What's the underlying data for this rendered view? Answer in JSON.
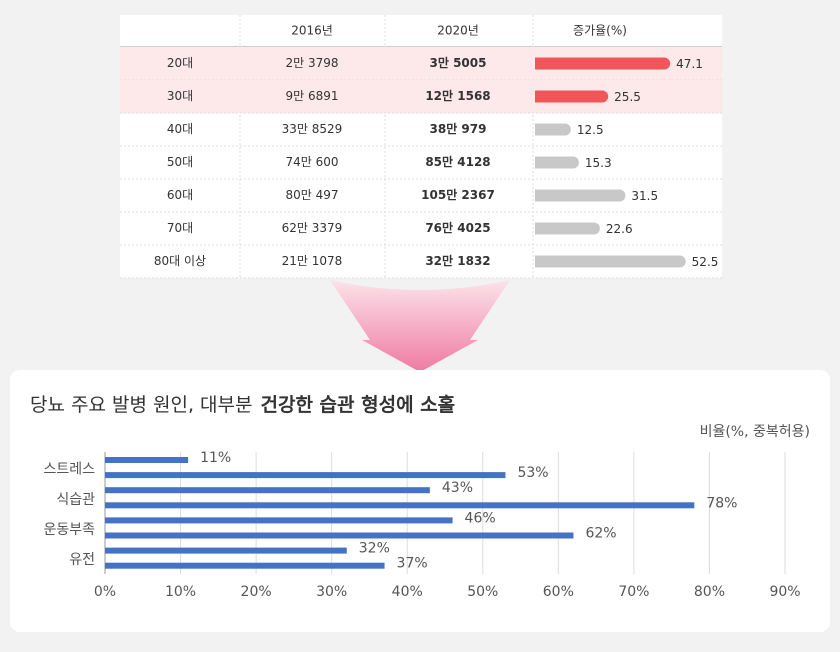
{
  "table": {
    "columns": [
      "2016년",
      "2020년",
      "증가율(%)"
    ],
    "rate_color": "#c8c8c8",
    "highlight_color": "#f0565a",
    "highlight_background": "#fde8ea",
    "rows": [
      {
        "label": "20대",
        "y2016": "2만 3798",
        "y2020": "3만 5005",
        "rate": 47.1,
        "highlight": true
      },
      {
        "label": "30대",
        "y2016": "9만 6891",
        "y2020": "12만 1568",
        "rate": 25.5,
        "highlight": true
      },
      {
        "label": "40대",
        "y2016": "33만 8529",
        "y2020": "38만 979",
        "rate": 12.5,
        "highlight": false
      },
      {
        "label": "50대",
        "y2016": "74만 600",
        "y2020": "85만 4128",
        "rate": 15.3,
        "highlight": false
      },
      {
        "label": "60대",
        "y2016": "80만 497",
        "y2020": "105만 2367",
        "rate": 31.5,
        "highlight": false
      },
      {
        "label": "70대",
        "y2016": "62만 3379",
        "y2020": "76만 4025",
        "rate": 22.6,
        "highlight": false
      },
      {
        "label": "80대 이상",
        "y2016": "21만 1078",
        "y2020": "32만 1832",
        "rate": 52.5,
        "highlight": false
      }
    ]
  },
  "chart_data": {
    "type": "hbar",
    "title_plain": "당뇨 주요 발병 원인, 대부분",
    "title_bold": "건강한 습관 형성에 소홀",
    "unit_label": "비율(%, 중복허용)",
    "categories": [
      "스트레스",
      null,
      "식습관",
      null,
      "운동부족",
      null,
      "유전",
      null
    ],
    "values": [
      11,
      53,
      43,
      78,
      46,
      62,
      32,
      37
    ],
    "value_labels": [
      "11%",
      "53%",
      "43%",
      "78%",
      "46%",
      "62%",
      "32%",
      "37%"
    ],
    "color": "#4472c4",
    "xlim": [
      0,
      90
    ],
    "xticks": [
      {
        "value": 0,
        "label": "0%"
      },
      {
        "value": 10,
        "label": "10%"
      },
      {
        "value": 20,
        "label": "20%"
      },
      {
        "value": 30,
        "label": "30%"
      },
      {
        "value": 40,
        "label": "40%"
      },
      {
        "value": 50,
        "label": "50%"
      },
      {
        "value": 60,
        "label": "60%"
      },
      {
        "value": 70,
        "label": "70%"
      },
      {
        "value": 80,
        "label": "80%"
      },
      {
        "value": 90,
        "label": "90%"
      }
    ],
    "grid": true
  }
}
